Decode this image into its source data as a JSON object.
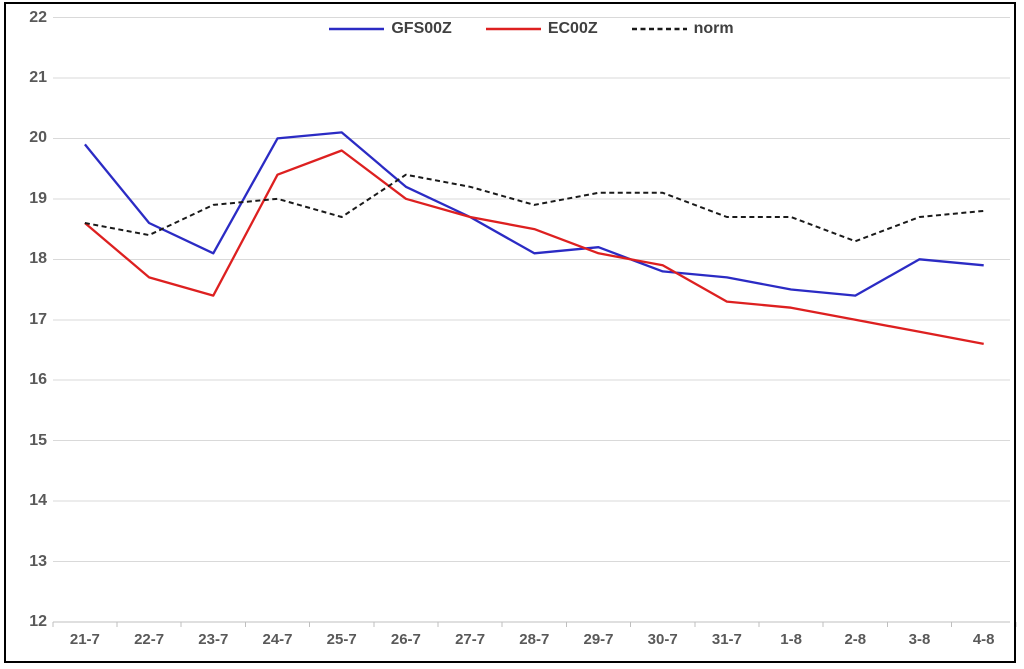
{
  "chart_data": {
    "type": "line",
    "title": "",
    "xlabel": "",
    "ylabel": "",
    "ylim": [
      12,
      22
    ],
    "y_tick_step": 1,
    "y_tick_labels": [
      "12",
      "13",
      "14",
      "15",
      "16",
      "17",
      "18",
      "19",
      "20",
      "21",
      "22"
    ],
    "grid": "horizontal",
    "legend_position": "top-center",
    "categories": [
      "21-7",
      "22-7",
      "23-7",
      "24-7",
      "25-7",
      "26-7",
      "27-7",
      "28-7",
      "29-7",
      "30-7",
      "31-7",
      "1-8",
      "2-8",
      "3-8",
      "4-8"
    ],
    "series": [
      {
        "name": "GFS00Z",
        "color": "#2b2bc4",
        "dash": "solid",
        "values": [
          19.9,
          18.6,
          18.1,
          20.0,
          20.1,
          19.2,
          18.7,
          18.1,
          18.2,
          17.8,
          17.7,
          17.5,
          17.4,
          18.0,
          17.9
        ]
      },
      {
        "name": "EC00Z",
        "color": "#dd2020",
        "dash": "solid",
        "values": [
          18.6,
          17.7,
          17.4,
          19.4,
          19.8,
          19.0,
          18.7,
          18.5,
          18.1,
          17.9,
          17.3,
          17.2,
          17.0,
          16.8,
          16.6
        ]
      },
      {
        "name": "norm",
        "color": "#1a1a1a",
        "dash": "dashed",
        "values": [
          18.6,
          18.4,
          18.9,
          19.0,
          18.7,
          19.4,
          19.2,
          18.9,
          19.1,
          19.1,
          18.7,
          18.7,
          18.3,
          18.7,
          18.8
        ]
      }
    ]
  },
  "colors": {
    "background": "#ffffff",
    "border": "#000000",
    "grid": "#d9d9d9",
    "axis_line": "#bfbfbf",
    "tick_label": "#595959",
    "legend_text": "#404040"
  }
}
